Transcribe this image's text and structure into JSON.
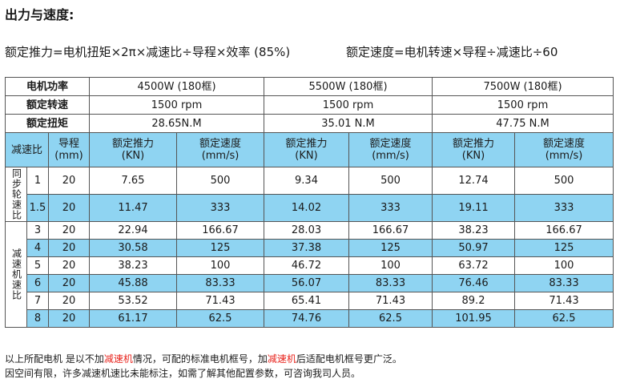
{
  "title": "出力与速度:",
  "formula_left": "额定推力=电机扭矩×2π×减速比÷导程×效率 (85%)",
  "formula_right": "额定速度=电机转速×导程÷减速比÷60",
  "table": {
    "row_power_label": "电机功率",
    "row_speed_label": "额定转速",
    "row_torque_label": "额定扭矩",
    "power": [
      "4500W (180框)",
      "5500W (180框)",
      "7500W (180框)"
    ],
    "rated_speed": [
      "1500 rpm",
      "1500 rpm",
      "1500 rpm"
    ],
    "torque": [
      "28.65N.M",
      "35.01 N.M",
      "47.75 N.M"
    ],
    "col_ratio": "减速比",
    "col_lead": "导程\n(mm)",
    "col_force": "额定推力\n(KN)",
    "col_speed": "额定速度\n(mm/s)",
    "group_sync": "同步轮速比",
    "group_reducer": "减速机速比",
    "rows": [
      [
        "1",
        "20",
        "7.65",
        "500",
        "9.34",
        "500",
        "12.74",
        "500"
      ],
      [
        "1.5",
        "20",
        "11.47",
        "333",
        "14.02",
        "333",
        "19.11",
        "333"
      ],
      [
        "3",
        "20",
        "22.94",
        "166.67",
        "28.03",
        "166.67",
        "38.23",
        "166.67"
      ],
      [
        "4",
        "20",
        "30.58",
        "125",
        "37.38",
        "125",
        "50.97",
        "125"
      ],
      [
        "5",
        "20",
        "38.23",
        "100",
        "46.72",
        "100",
        "63.72",
        "100"
      ],
      [
        "6",
        "20",
        "45.88",
        "83.33",
        "56.07",
        "83.33",
        "76.46",
        "83.33"
      ],
      [
        "7",
        "20",
        "53.52",
        "71.43",
        "65.41",
        "71.43",
        "89.2",
        "71.43"
      ],
      [
        "8",
        "20",
        "61.17",
        "62.5",
        "74.76",
        "62.5",
        "101.95",
        "62.5"
      ]
    ]
  },
  "note1_a": "以上所配电机 是以不加",
  "note1_red1": "减速机",
  "note1_b": "情况，可配的标准电机框号，加",
  "note1_red2": "减速机",
  "note1_c": "后适配电机框号更广泛。",
  "note2": "因空间有限，许多减速机速比未能标注，如需了解其他配置参数，可咨询我司人员。"
}
